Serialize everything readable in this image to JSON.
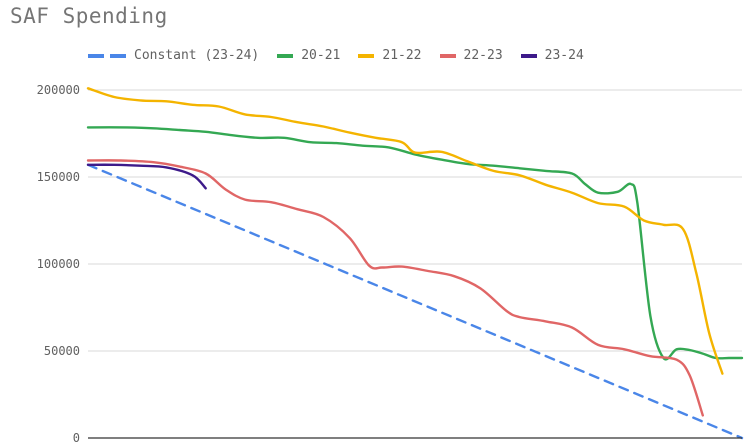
{
  "chart_data": {
    "type": "line",
    "title": "SAF Spending",
    "xlabel": "",
    "ylabel": "",
    "ylim": [
      0,
      200000
    ],
    "yticks": [
      0,
      50000,
      100000,
      150000,
      200000
    ],
    "ytick_labels": [
      "0",
      "50000",
      "100000",
      "150000",
      "200000"
    ],
    "grid": true,
    "legend_position": "top",
    "xlim": [
      0,
      100
    ],
    "series": [
      {
        "name": "Constant (23-24)",
        "color": "#4a86e8",
        "dashed": true,
        "x": [
          0,
          100
        ],
        "y": [
          157000,
          0
        ]
      },
      {
        "name": "20-21",
        "color": "#34a853",
        "dashed": false,
        "x": [
          0,
          6,
          10,
          14,
          18,
          22,
          26,
          30,
          34,
          38,
          42,
          46,
          50,
          54,
          58,
          62,
          66,
          70,
          74,
          76,
          78,
          81,
          83,
          84,
          86,
          88,
          90,
          92,
          94,
          96,
          98,
          100
        ],
        "y": [
          178500,
          178500,
          178000,
          177000,
          176000,
          174000,
          172500,
          172500,
          170000,
          169500,
          168000,
          167000,
          163000,
          160000,
          157500,
          156500,
          155000,
          153500,
          152000,
          146000,
          141000,
          141500,
          146000,
          135000,
          70000,
          46000,
          51000,
          50500,
          48500,
          46000,
          46000,
          46000
        ]
      },
      {
        "name": "21-22",
        "color": "#f4b400",
        "dashed": false,
        "x": [
          0,
          4,
          8,
          12,
          16,
          20,
          24,
          28,
          32,
          36,
          40,
          44,
          48,
          50,
          54,
          58,
          62,
          66,
          70,
          74,
          78,
          82,
          85,
          88,
          91,
          93,
          95,
          97
        ],
        "y": [
          201000,
          196000,
          194000,
          193500,
          191500,
          190500,
          186000,
          184500,
          181500,
          179000,
          175500,
          172500,
          170000,
          164000,
          164500,
          159000,
          153500,
          151000,
          145500,
          141000,
          135000,
          133000,
          125000,
          122500,
          120000,
          95000,
          60000,
          37000
        ]
      },
      {
        "name": "22-23",
        "color": "#e06666",
        "dashed": false,
        "x": [
          0,
          5,
          10,
          14,
          18,
          21,
          24,
          28,
          32,
          36,
          40,
          43,
          45,
          48,
          52,
          56,
          60,
          64,
          66,
          70,
          74,
          78,
          82,
          86,
          90,
          92,
          94
        ],
        "y": [
          159500,
          159500,
          158500,
          156000,
          152000,
          143000,
          137000,
          135500,
          131500,
          127000,
          115000,
          99000,
          98000,
          98500,
          96000,
          93000,
          86000,
          73000,
          69500,
          67000,
          63500,
          53500,
          51000,
          47000,
          45000,
          36000,
          13000
        ]
      },
      {
        "name": "23-24",
        "color": "#3d1a8a",
        "dashed": false,
        "x": [
          0,
          4,
          8,
          12,
          16,
          18
        ],
        "y": [
          157000,
          157000,
          156500,
          155500,
          151000,
          143500
        ]
      }
    ]
  }
}
